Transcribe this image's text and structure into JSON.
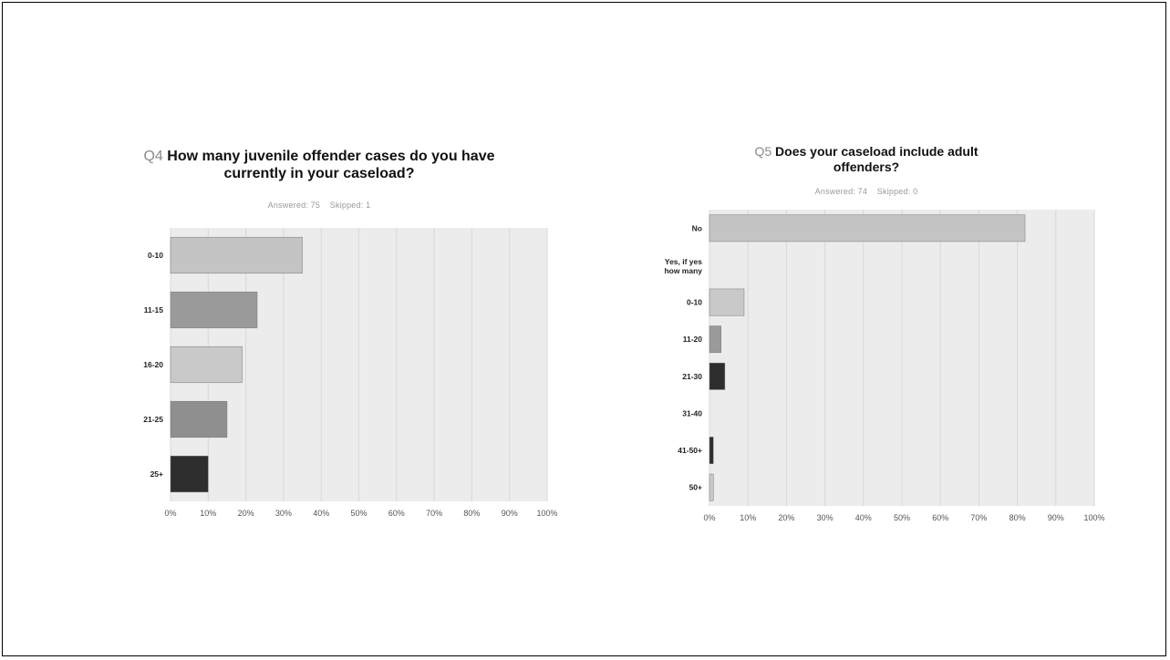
{
  "charts": [
    {
      "qnum": "Q4",
      "title": "How many juvenile offender cases do you have currently in your caseload?",
      "answered": "Answered: 75",
      "skipped": "Skipped: 1"
    },
    {
      "qnum": "Q5",
      "title": "Does your caseload include adult offenders?",
      "answered": "Answered: 74",
      "skipped": "Skipped: 0"
    }
  ],
  "colors": {
    "bar1": "#c4c4c4",
    "bar2": "#9a9a9a",
    "bar3": "#c9c9c9",
    "bar4": "#8f8f8f",
    "bar5": "#2e2e2e",
    "plot_bg": "#ececec"
  },
  "chart_data": [
    {
      "type": "bar",
      "orientation": "horizontal",
      "title": "How many juvenile offender cases do you have currently in your caseload?",
      "categories": [
        "0-10",
        "11-15",
        "16-20",
        "21-25",
        "25+"
      ],
      "values": [
        35,
        23,
        19,
        15,
        10
      ],
      "xlim": [
        0,
        100
      ],
      "xticks": [
        "0%",
        "10%",
        "20%",
        "30%",
        "40%",
        "50%",
        "60%",
        "70%",
        "80%",
        "90%",
        "100%"
      ],
      "grid": true
    },
    {
      "type": "bar",
      "orientation": "horizontal",
      "title": "Does your caseload include adult offenders?",
      "categories": [
        "No",
        "Yes, if yes how many",
        "0-10",
        "11-20",
        "21-30",
        "31-40",
        "41-50+",
        "50+"
      ],
      "values": [
        82,
        0,
        9,
        3,
        4,
        0,
        1,
        1
      ],
      "xlim": [
        0,
        100
      ],
      "xticks": [
        "0%",
        "10%",
        "20%",
        "30%",
        "40%",
        "50%",
        "60%",
        "70%",
        "80%",
        "90%",
        "100%"
      ],
      "grid": true
    }
  ]
}
